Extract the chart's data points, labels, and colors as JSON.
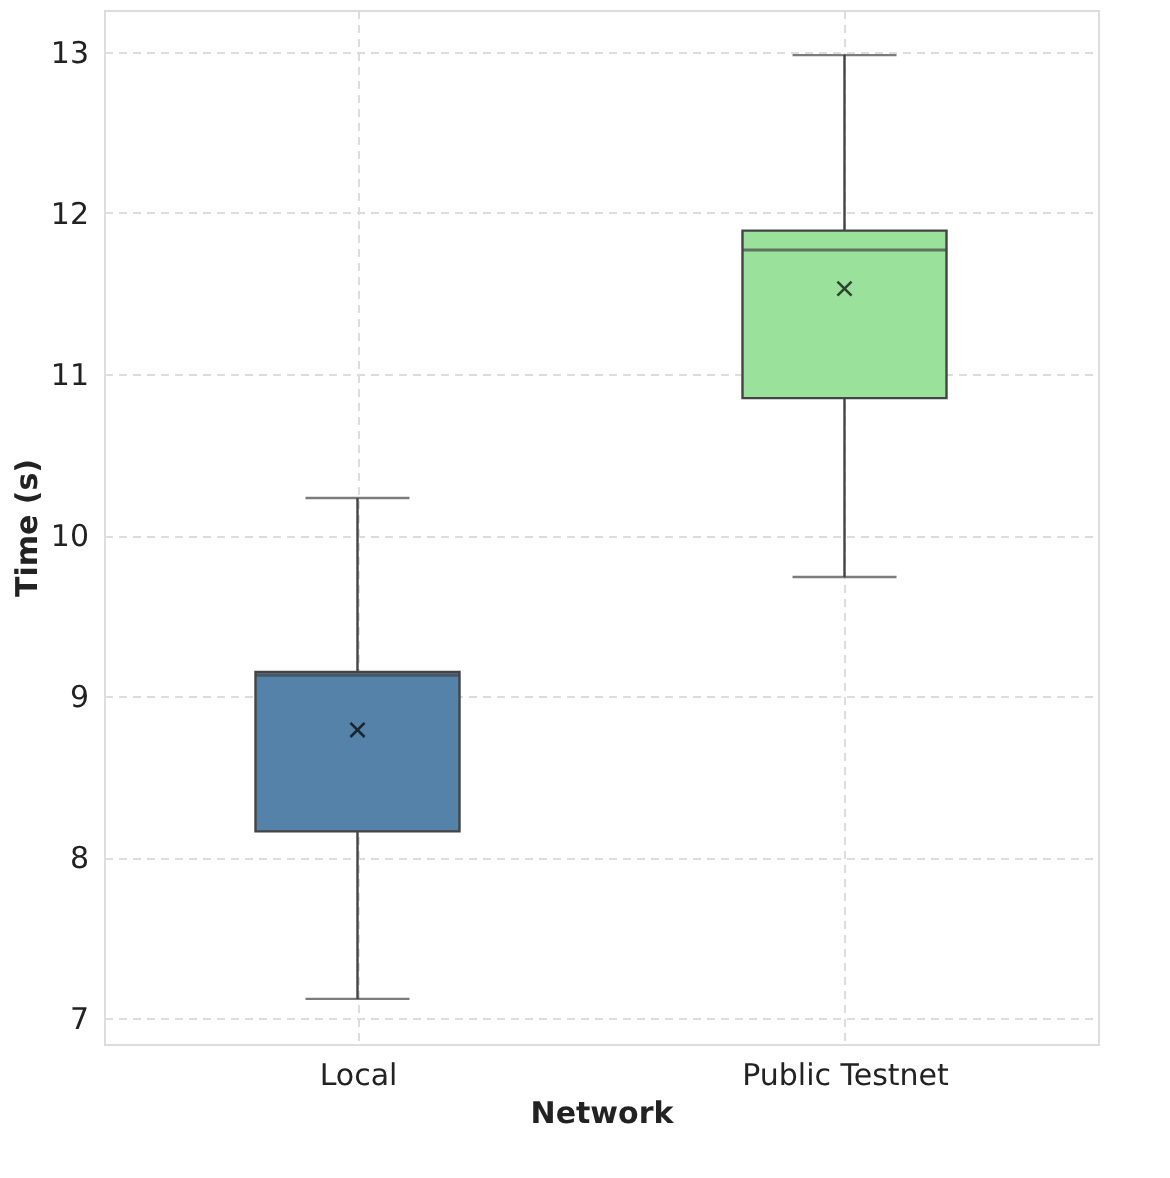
{
  "chart_data": {
    "type": "box",
    "xlabel": "Network",
    "ylabel": "Time (s)",
    "categories": [
      "Local",
      "Public Testnet"
    ],
    "boxes": [
      {
        "low": 7.12,
        "q1": 8.16,
        "median": 9.13,
        "q3": 9.15,
        "high": 10.23,
        "mean": 8.79
      },
      {
        "low": 9.74,
        "q1": 10.85,
        "median": 11.77,
        "q3": 11.89,
        "high": 12.98,
        "mean": 11.53
      }
    ],
    "colors": [
      "#5482a8",
      "#9ae29b"
    ],
    "ylim": [
      6.84,
      13.26
    ],
    "yticks": [
      7,
      8,
      9,
      10,
      11,
      12,
      13
    ],
    "grid": true,
    "marker": "cross"
  }
}
